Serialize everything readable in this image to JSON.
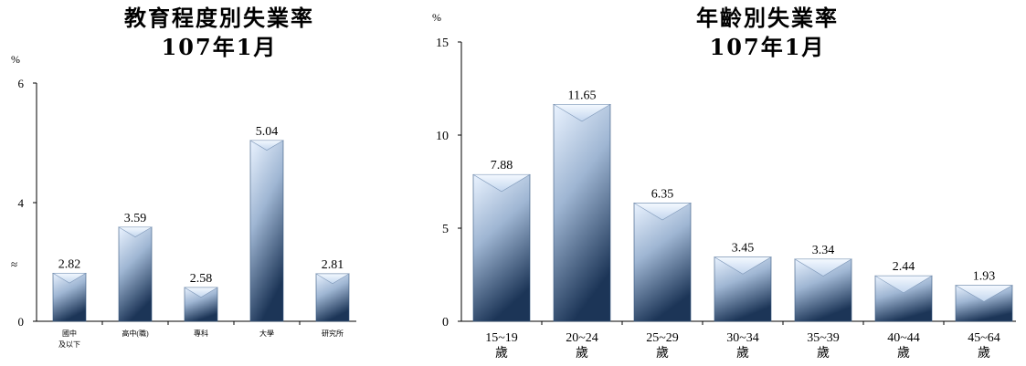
{
  "chart_data": [
    {
      "type": "bar",
      "title": "教育程度別失業率",
      "subtitle": "107年1月",
      "ylabel": "%",
      "axis_break_mark": "≈",
      "ylim": [
        0,
        6
      ],
      "yticks": [
        "0",
        "4",
        "6"
      ],
      "categories": [
        [
          "國中",
          "及以下"
        ],
        [
          "高中(職)"
        ],
        [
          "專科"
        ],
        [
          "大學"
        ],
        [
          "研究所"
        ]
      ],
      "values": [
        2.82,
        3.59,
        2.58,
        5.04,
        2.81
      ],
      "data_labels": [
        "2.82",
        "3.59",
        "2.58",
        "5.04",
        "2.81"
      ],
      "grid": false
    },
    {
      "type": "bar",
      "title": "年齡別失業率",
      "subtitle": "107年1月",
      "ylabel": "%",
      "ylim": [
        0,
        15
      ],
      "yticks": [
        "0",
        "5",
        "10",
        "15"
      ],
      "categories": [
        [
          "15~19",
          "歲"
        ],
        [
          "20~24",
          "歲"
        ],
        [
          "25~29",
          "歲"
        ],
        [
          "30~34",
          "歲"
        ],
        [
          "35~39",
          "歲"
        ],
        [
          "40~44",
          "歲"
        ],
        [
          "45~64",
          "歲"
        ]
      ],
      "values": [
        7.88,
        11.65,
        6.35,
        3.45,
        3.34,
        2.44,
        1.93
      ],
      "data_labels": [
        "7.88",
        "11.65",
        "6.35",
        "3.45",
        "3.34",
        "2.44",
        "1.93"
      ],
      "grid": false
    }
  ]
}
